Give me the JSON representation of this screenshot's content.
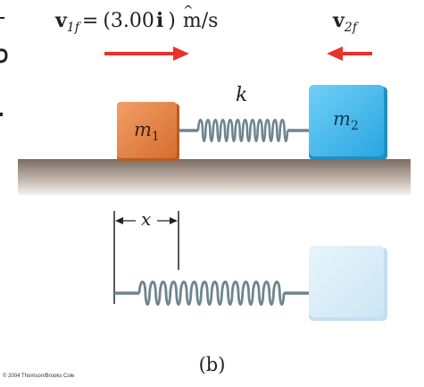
{
  "velocity1": {
    "symbol": "v",
    "subscript": "1f",
    "equals": "=",
    "expression": "(3.00",
    "unit_vector": "i",
    "unit_hat": "^",
    "close": ")",
    "units": "m/s"
  },
  "velocity2": {
    "symbol": "v",
    "subscript": "2f"
  },
  "spring_constant": "k",
  "mass1": {
    "symbol": "m",
    "subscript": "1"
  },
  "mass2": {
    "symbol": "m",
    "subscript": "2"
  },
  "displacement": "x",
  "caption": "(b)",
  "copyright": "© 2004 Thomson/Brooks Cole",
  "colors": {
    "mass1_face": "#e07a3e",
    "mass2_face": "#38b4ea",
    "mass2_ghost": "#d6ecf8",
    "arrow": "#e8332a",
    "spring": "#6f8590",
    "surface_top": "#8a7b70",
    "surface_bottom": "#f2eeea"
  }
}
